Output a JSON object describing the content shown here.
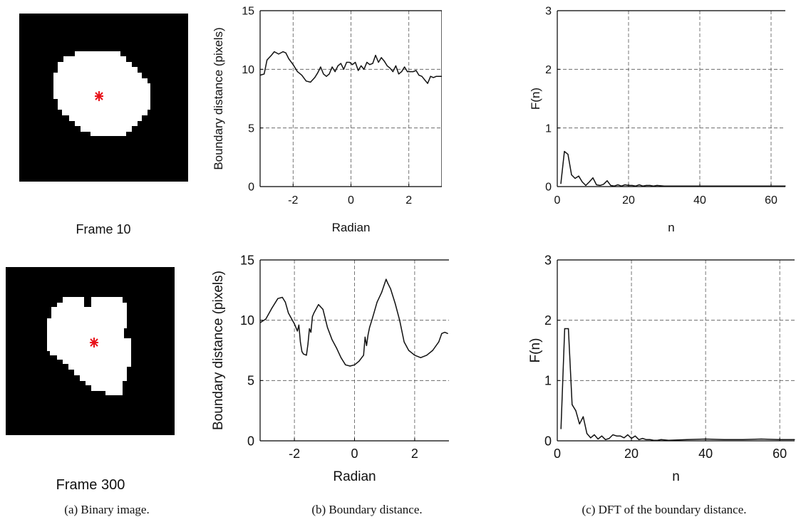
{
  "colors": {
    "marker": "#e8121a",
    "blob": "#ffffff",
    "background": "#000000",
    "line": "#111111",
    "grid": "#555555"
  },
  "frames": [
    {
      "label": "Frame 10"
    },
    {
      "label": "Frame 300"
    }
  ],
  "captions": {
    "a": "(a) Binary image.",
    "b": "(b) Boundary distance.",
    "c": "(c) DFT of the boundary distance."
  },
  "chart_data": [
    {
      "type": "line",
      "xlabel": "Radian",
      "ylabel": "Boundary distance (pixels)",
      "xlim": [
        -3.14,
        3.14
      ],
      "ylim": [
        0,
        15
      ],
      "xticks": [
        -2,
        0,
        2
      ],
      "yticks": [
        0,
        5,
        10,
        15
      ],
      "grid": true,
      "x": [
        -3.14,
        -3.0,
        -2.9,
        -2.75,
        -2.65,
        -2.5,
        -2.35,
        -2.25,
        -2.15,
        -2.0,
        -1.85,
        -1.7,
        -1.55,
        -1.4,
        -1.25,
        -1.15,
        -1.05,
        -0.95,
        -0.85,
        -0.75,
        -0.65,
        -0.55,
        -0.45,
        -0.35,
        -0.25,
        -0.15,
        -0.05,
        0.05,
        0.15,
        0.25,
        0.35,
        0.45,
        0.55,
        0.65,
        0.75,
        0.85,
        0.95,
        1.05,
        1.15,
        1.25,
        1.35,
        1.45,
        1.55,
        1.65,
        1.75,
        1.85,
        1.95,
        2.05,
        2.15,
        2.25,
        2.35,
        2.45,
        2.55,
        2.65,
        2.75,
        2.85,
        2.95,
        3.05,
        3.14
      ],
      "series": [
        {
          "values": [
            9.5,
            9.6,
            10.8,
            11.2,
            11.5,
            11.3,
            11.5,
            11.4,
            10.9,
            10.4,
            9.8,
            9.5,
            9.0,
            8.9,
            9.3,
            9.7,
            10.2,
            9.6,
            9.4,
            9.6,
            10.2,
            9.8,
            10.3,
            10.5,
            10.0,
            10.6,
            10.6,
            10.4,
            10.6,
            9.9,
            10.3,
            10.0,
            10.6,
            10.4,
            10.5,
            11.2,
            10.6,
            11.0,
            10.7,
            10.3,
            10.1,
            9.8,
            10.3,
            9.6,
            9.8,
            10.2,
            9.8,
            9.8,
            9.8,
            9.9,
            9.5,
            9.4,
            9.1,
            8.8,
            9.4,
            9.3,
            9.4,
            9.4,
            9.4
          ]
        }
      ]
    },
    {
      "type": "line",
      "xlabel": "n",
      "ylabel": "F(n)",
      "xlim": [
        0,
        64
      ],
      "ylim": [
        0,
        3
      ],
      "xticks": [
        0,
        20,
        40,
        60
      ],
      "yticks": [
        0,
        1,
        2,
        3
      ],
      "grid": true,
      "x": [
        1,
        2,
        3,
        4,
        5,
        6,
        7,
        8,
        9,
        10,
        11,
        12,
        13,
        14,
        15,
        16,
        17,
        18,
        19,
        20,
        21,
        22,
        23,
        24,
        25,
        26,
        27,
        28,
        30,
        35,
        40,
        45,
        50,
        55,
        60,
        64
      ],
      "series": [
        {
          "values": [
            0.05,
            0.6,
            0.55,
            0.2,
            0.14,
            0.18,
            0.08,
            0.02,
            0.08,
            0.15,
            0.03,
            0.02,
            0.04,
            0.1,
            0.02,
            0.01,
            0.03,
            0.01,
            0.03,
            0.02,
            0.02,
            0.01,
            0.03,
            0.01,
            0.02,
            0.02,
            0.01,
            0.02,
            0.01,
            0.01,
            0.01,
            0.01,
            0.01,
            0.01,
            0.01,
            0.01
          ]
        }
      ]
    },
    {
      "type": "line",
      "xlabel": "Radian",
      "ylabel": "Boundary distance (pixels)",
      "xlim": [
        -3.14,
        3.14
      ],
      "ylim": [
        0,
        15
      ],
      "xticks": [
        -2,
        0,
        2
      ],
      "yticks": [
        0,
        5,
        10,
        15
      ],
      "grid": true,
      "x": [
        -3.14,
        -2.95,
        -2.75,
        -2.55,
        -2.4,
        -2.3,
        -2.2,
        -2.0,
        -1.9,
        -1.85,
        -1.8,
        -1.75,
        -1.7,
        -1.6,
        -1.55,
        -1.5,
        -1.45,
        -1.4,
        -1.35,
        -1.2,
        -1.05,
        -0.9,
        -0.75,
        -0.6,
        -0.45,
        -0.3,
        -0.15,
        0.0,
        0.15,
        0.3,
        0.35,
        0.4,
        0.45,
        0.5,
        0.6,
        0.75,
        0.9,
        1.05,
        1.1,
        1.2,
        1.35,
        1.5,
        1.65,
        1.8,
        2.0,
        2.2,
        2.4,
        2.6,
        2.8,
        2.9,
        3.0,
        3.1
      ],
      "series": [
        {
          "values": [
            9.8,
            10.1,
            11.0,
            11.8,
            11.9,
            11.5,
            10.6,
            9.7,
            9.1,
            9.6,
            8.2,
            7.4,
            7.2,
            7.1,
            8.0,
            9.3,
            9.0,
            10.3,
            10.6,
            11.3,
            10.9,
            9.4,
            8.4,
            7.7,
            6.9,
            6.3,
            6.2,
            6.3,
            6.6,
            7.1,
            8.6,
            7.9,
            8.8,
            9.4,
            10.2,
            11.5,
            12.3,
            13.4,
            13.1,
            12.6,
            11.4,
            10.0,
            8.2,
            7.5,
            7.1,
            6.9,
            7.1,
            7.5,
            8.2,
            8.9,
            9.0,
            8.9
          ]
        }
      ]
    },
    {
      "type": "line",
      "xlabel": "n",
      "ylabel": "F(n)",
      "xlim": [
        0,
        64
      ],
      "ylim": [
        0,
        3
      ],
      "xticks": [
        0,
        20,
        40,
        60
      ],
      "yticks": [
        0,
        1,
        2,
        3
      ],
      "grid": true,
      "x": [
        1,
        2,
        3,
        4,
        5,
        6,
        7,
        8,
        9,
        10,
        11,
        12,
        13,
        14,
        15,
        16,
        17,
        18,
        19,
        20,
        21,
        22,
        23,
        24,
        25,
        26,
        27,
        28,
        30,
        35,
        40,
        45,
        50,
        55,
        60,
        64
      ],
      "series": [
        {
          "values": [
            0.2,
            1.86,
            1.86,
            0.6,
            0.5,
            0.28,
            0.4,
            0.12,
            0.05,
            0.1,
            0.03,
            0.08,
            0.02,
            0.04,
            0.1,
            0.08,
            0.08,
            0.05,
            0.1,
            0.04,
            0.08,
            0.02,
            0.04,
            0.02,
            0.02,
            0.01,
            0.01,
            0.02,
            0.01,
            0.02,
            0.03,
            0.02,
            0.02,
            0.03,
            0.02,
            0.02
          ]
        }
      ]
    }
  ]
}
